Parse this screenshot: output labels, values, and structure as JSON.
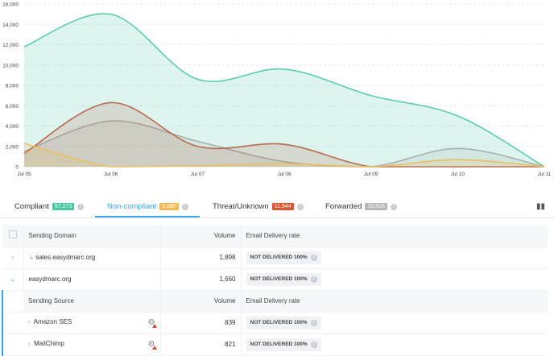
{
  "chart_data": {
    "type": "area",
    "categories": [
      "Jul 05",
      "Jul 06",
      "Jul 07",
      "Jul 08",
      "Jul 09",
      "Jul 10",
      "Jul 11"
    ],
    "ylim": [
      0,
      16000
    ],
    "yticks": [
      "0",
      "2,000",
      "4,000",
      "6,000",
      "8,000",
      "10,000",
      "12,000",
      "14,000",
      "16,000"
    ],
    "grid": true,
    "series": [
      {
        "key": "compliant",
        "color": "#5ccbae",
        "values": [
          11800,
          15000,
          8600,
          9600,
          7000,
          5000,
          0
        ]
      },
      {
        "key": "forwarded",
        "color": "#a8b0ae",
        "values": [
          1500,
          4500,
          2500,
          500,
          0,
          1800,
          0
        ]
      },
      {
        "key": "threat",
        "color": "#b86a50",
        "values": [
          1300,
          6300,
          2000,
          2200,
          0,
          0,
          0
        ]
      },
      {
        "key": "noncompliant",
        "color": "#e8c060",
        "values": [
          2300,
          0,
          100,
          300,
          0,
          700,
          0
        ]
      }
    ]
  },
  "tabs": [
    {
      "label": "Compliant",
      "count": "57,273",
      "color": "#45c9a0"
    },
    {
      "label": "Non-compliant",
      "count": "3,680",
      "color": "#f2b94f"
    },
    {
      "label": "Threat/Unknown",
      "count": "11,944",
      "color": "#e0532e"
    },
    {
      "label": "Forwarded",
      "count": "10,818",
      "color": "#b7b7b7"
    }
  ],
  "table": {
    "headers": [
      "Sending Domain",
      "Volume",
      "Email Delivery rate"
    ],
    "rows": [
      {
        "domain": "sales.easydmarc.org",
        "volume": "1,898",
        "rate": "NOT DELIVERED 100%"
      },
      {
        "domain": "easydmarc.org",
        "volume": "1,660",
        "rate": "NOT DELIVERED 100%"
      }
    ],
    "sub_headers": [
      "Sending Source",
      "Volume",
      "Email Delivery rate"
    ],
    "sub_rows": [
      {
        "source": "Amazon SES",
        "volume": "839",
        "rate": "NOT DELIVERED 100%"
      },
      {
        "source": "MailChimp",
        "volume": "821",
        "rate": "NOT DELIVERED 100%"
      }
    ]
  }
}
